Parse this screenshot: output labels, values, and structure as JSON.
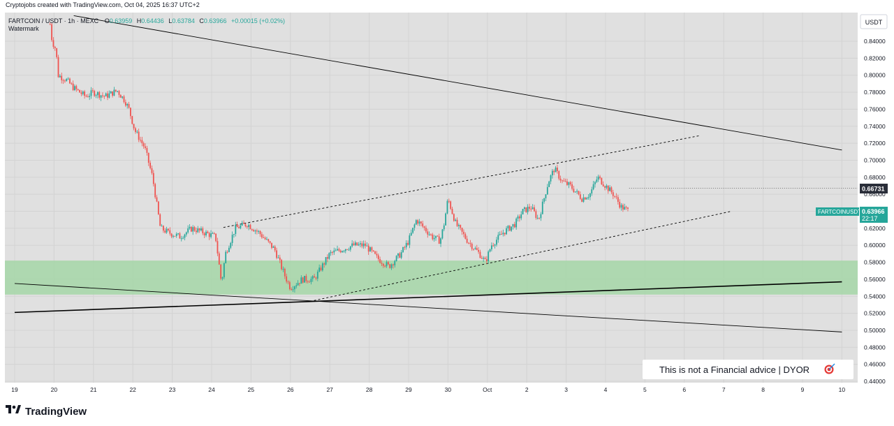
{
  "header": {
    "credit": "Cryptojobs created with TradingView.com, Oct 04, 2025 16:37 UTC+2",
    "symbol": "FARTCOIN / USDT · 1h · MEXC",
    "open_label": "O",
    "open": "0.63959",
    "high_label": "H",
    "high": "0.64436",
    "low_label": "L",
    "low": "0.63784",
    "close_label": "C",
    "close": "0.63966",
    "change": "+0.00015 (+0.02%)",
    "watermark": "Watermark"
  },
  "currency_button": "USDT",
  "price_tags": {
    "level_value": "0.66731",
    "current_symbol": "FARTCOINUSDT",
    "current_value": "0.63966",
    "countdown": "22:17"
  },
  "disclaimer": {
    "text": "This is not a Financial advice | DYOR",
    "icon": "target-emoji-icon"
  },
  "footer": {
    "brand": "TradingView",
    "logo_icon": "tradingview-logo-icon"
  },
  "colors": {
    "up": "#26a69a",
    "down": "#ef5350",
    "zone": "#a5d6a7",
    "chart_bg": "#e0e0e0"
  },
  "chart_data": {
    "type": "candlestick",
    "title": "FARTCOIN / USDT · 1h · MEXC",
    "y_axis": {
      "min": 0.44,
      "max": 0.86,
      "ticks": [
        "0.84000",
        "0.82000",
        "0.80000",
        "0.78000",
        "0.76000",
        "0.74000",
        "0.72000",
        "0.70000",
        "0.68000",
        "0.66000",
        "0.64000",
        "0.62000",
        "0.60000",
        "0.58000",
        "0.56000",
        "0.54000",
        "0.52000",
        "0.50000",
        "0.48000",
        "0.46000",
        "0.44000"
      ]
    },
    "x_axis": {
      "ticks": [
        "19",
        "20",
        "21",
        "22",
        "23",
        "24",
        "25",
        "26",
        "27",
        "28",
        "29",
        "30",
        "Oct",
        "2",
        "3",
        "4",
        "5",
        "6",
        "7",
        "8",
        "9",
        "10"
      ]
    },
    "grid": true,
    "price_path": [
      [
        "19.9",
        0.86
      ],
      [
        "19.95",
        0.84
      ],
      [
        "20.05",
        0.83
      ],
      [
        "20.1",
        0.8
      ],
      [
        "20.3",
        0.795
      ],
      [
        "20.5",
        0.785
      ],
      [
        "20.8",
        0.775
      ],
      [
        "21",
        0.78
      ],
      [
        "21.3",
        0.775
      ],
      [
        "21.6",
        0.782
      ],
      [
        "21.8",
        0.77
      ],
      [
        "21.9",
        0.76
      ],
      [
        "22.05",
        0.735
      ],
      [
        "22.3",
        0.715
      ],
      [
        "22.5",
        0.68
      ],
      [
        "22.6",
        0.65
      ],
      [
        "22.7",
        0.62
      ],
      [
        "22.9",
        0.615
      ],
      [
        "23.2",
        0.61
      ],
      [
        "23.5",
        0.62
      ],
      [
        "23.8",
        0.615
      ],
      [
        "24.1",
        0.61
      ],
      [
        "24.25",
        0.555
      ],
      [
        "24.35",
        0.59
      ],
      [
        "24.6",
        0.62
      ],
      [
        "24.9",
        0.625
      ],
      [
        "25.2",
        0.615
      ],
      [
        "25.6",
        0.595
      ],
      [
        "25.85",
        0.565
      ],
      [
        "26.0",
        0.55
      ],
      [
        "26.3",
        0.56
      ],
      [
        "26.6",
        0.56
      ],
      [
        "26.8",
        0.575
      ],
      [
        "27.0",
        0.59
      ],
      [
        "27.3",
        0.595
      ],
      [
        "27.6",
        0.6
      ],
      [
        "27.9",
        0.6
      ],
      [
        "28.2",
        0.585
      ],
      [
        "28.5",
        0.575
      ],
      [
        "28.8",
        0.59
      ],
      [
        "29.0",
        0.605
      ],
      [
        "29.2",
        0.63
      ],
      [
        "29.4",
        0.62
      ],
      [
        "29.6",
        0.61
      ],
      [
        "29.8",
        0.605
      ],
      [
        "29.9",
        0.625
      ],
      [
        "30.0",
        0.655
      ],
      [
        "30.2",
        0.625
      ],
      [
        "30.5",
        0.605
      ],
      [
        "30.8",
        0.59
      ],
      [
        "30.95",
        0.58
      ],
      [
        "31.1",
        0.6
      ],
      [
        "31.4",
        0.615
      ],
      [
        "31.7",
        0.625
      ],
      [
        "31.9",
        0.64
      ],
      [
        "32.1",
        0.645
      ],
      [
        "32.3",
        0.63
      ],
      [
        "32.55",
        0.675
      ],
      [
        "32.7",
        0.69
      ],
      [
        "32.9",
        0.675
      ],
      [
        "33.1",
        0.67
      ],
      [
        "33.4",
        0.655
      ],
      [
        "33.6",
        0.66
      ],
      [
        "33.8",
        0.68
      ],
      [
        "34.0",
        0.67
      ],
      [
        "34.2",
        0.66
      ],
      [
        "34.4",
        0.645
      ],
      [
        "34.6",
        0.64
      ]
    ],
    "current_price": 0.63966,
    "horizontal_level": 0.66731,
    "support_zone": {
      "from": 0.542,
      "to": 0.582
    },
    "trendlines": [
      {
        "style": "solid",
        "from": [
          "20.5",
          0.87
        ],
        "to": [
          "10",
          0.712
        ]
      },
      {
        "style": "dashed",
        "from": [
          "24.3",
          0.621
        ],
        "to": [
          "6.4",
          0.729
        ]
      },
      {
        "style": "dashed",
        "from": [
          "26.6",
          0.535
        ],
        "to": [
          "7.2",
          0.64
        ]
      },
      {
        "style": "solid-thick",
        "from": [
          "19",
          0.521
        ],
        "to": [
          "10",
          0.557
        ]
      },
      {
        "style": "solid",
        "from": [
          "19",
          0.555
        ],
        "to": [
          "10",
          0.498
        ]
      }
    ]
  }
}
